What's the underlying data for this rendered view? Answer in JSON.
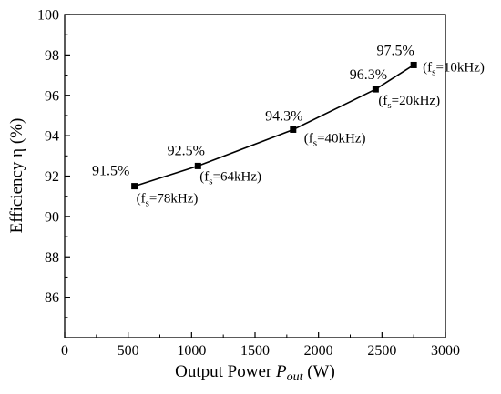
{
  "chart_data": {
    "type": "line",
    "title": "",
    "xlabel": {
      "prefix": "Output Power ",
      "symbol": "P",
      "subscript": "out",
      "unit": " (W)"
    },
    "ylabel": "Efficiency η (%)",
    "xlim": [
      0,
      3000
    ],
    "ylim": [
      84,
      100
    ],
    "x_ticks": [
      "0",
      "500",
      "1000",
      "1500",
      "2000",
      "2500",
      "3000"
    ],
    "y_ticks": [
      "86",
      "88",
      "90",
      "92",
      "94",
      "96",
      "98",
      "100"
    ],
    "grid": false,
    "legend": "none",
    "series": [
      {
        "marker": "square",
        "color": "#000000",
        "x": [
          550,
          1050,
          1800,
          2450,
          2750
        ],
        "y": [
          91.5,
          92.5,
          94.3,
          96.3,
          97.5
        ],
        "value_labels": [
          "91.5%",
          "92.5%",
          "94.3%",
          "96.3%",
          "97.5%"
        ],
        "conditions": [
          {
            "sym": "f",
            "sub": "s",
            "val": "=78kHz)"
          },
          {
            "sym": "f",
            "sub": "s",
            "val": "=64kHz)"
          },
          {
            "sym": "f",
            "sub": "s",
            "val": "=40kHz)"
          },
          {
            "sym": "f",
            "sub": "s",
            "val": "=20kHz)"
          },
          {
            "sym": "f",
            "sub": "s",
            "val": "=10kHz)"
          }
        ]
      }
    ]
  }
}
